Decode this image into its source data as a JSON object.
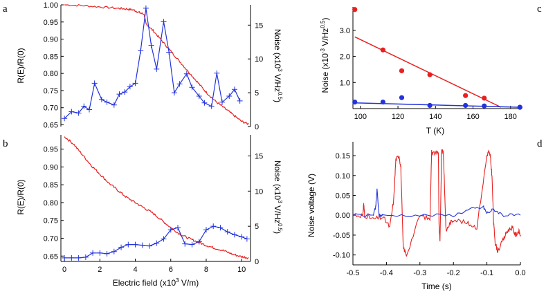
{
  "colors": {
    "red": "#e8201f",
    "blue": "#2233dd",
    "axis": "#000000"
  },
  "panel_labels": {
    "a": "a",
    "b": "b",
    "c": "c",
    "d": "d"
  },
  "axis_labels": {
    "ab_left": "R(E)/R(0)",
    "ab_right_pre": "Noise (x10",
    "ab_right_exp": "3",
    "ab_right_mid": " V/Hz",
    "ab_right_exp2": "0.5",
    "ab_right_post": ")",
    "ab_x_pre": "Electric field (x10",
    "ab_x_exp": "3",
    "ab_x_post": " V/m)",
    "c_y_pre": "Noise (x10",
    "c_y_exp": "-3",
    "c_y_mid": " V/Hz",
    "c_y_exp2": "0.5",
    "c_y_post": ")",
    "c_x": "T (K)",
    "d_y": "Noise voltage (V)",
    "d_x": "Time (s)"
  },
  "chart_data": [
    {
      "id": "a",
      "type": "line",
      "xlim": [
        -0.2,
        10.5
      ],
      "ylim_left": [
        0.645,
        1.0
      ],
      "ylim_right": [
        0,
        18
      ],
      "yticks_left": [
        "0.65",
        "0.70",
        "0.75",
        "0.80",
        "0.85",
        "0.90",
        "0.95",
        "1.00"
      ],
      "yticks_right": [
        "0",
        "5",
        "10",
        "15"
      ],
      "series": [
        {
          "name": "R(E)/R(0)",
          "axis": "left",
          "color": "red",
          "style": "noisy",
          "x": [
            0,
            1,
            2,
            3,
            3.5,
            3.9,
            4.2,
            4.5,
            4.6,
            5.0,
            5.5,
            6.0,
            6.5,
            7.0,
            7.5,
            8.0,
            8.5,
            9.0,
            9.5,
            10.0,
            10.4
          ],
          "y": [
            1.0,
            0.998,
            0.994,
            0.99,
            0.988,
            0.985,
            0.978,
            0.972,
            0.945,
            0.925,
            0.895,
            0.865,
            0.835,
            0.805,
            0.775,
            0.745,
            0.72,
            0.7,
            0.68,
            0.66,
            0.652
          ]
        },
        {
          "name": "Noise",
          "axis": "right",
          "color": "blue",
          "style": "plus",
          "x": [
            0,
            0.4,
            0.8,
            1.1,
            1.4,
            1.7,
            2.1,
            2.4,
            2.8,
            3.1,
            3.4,
            3.7,
            4.0,
            4.3,
            4.6,
            4.9,
            5.2,
            5.6,
            5.9,
            6.2,
            6.5,
            6.9,
            7.2,
            7.6,
            7.9,
            8.3,
            8.6,
            8.9,
            9.3,
            9.6,
            9.9
          ],
          "y": [
            1.2,
            2.2,
            2.0,
            3.0,
            2.5,
            6.4,
            4.0,
            3.6,
            3.2,
            4.8,
            5.1,
            5.9,
            6.4,
            11.2,
            17.5,
            12.0,
            8.5,
            15.5,
            11.0,
            5.0,
            6.3,
            7.8,
            5.8,
            4.5,
            3.5,
            3.0,
            7.9,
            3.6,
            4.5,
            5.5,
            3.8
          ]
        }
      ]
    },
    {
      "id": "b",
      "type": "line",
      "xlim": [
        -0.2,
        10.5
      ],
      "ylim_left": [
        0.635,
        0.99
      ],
      "ylim_right": [
        0,
        18
      ],
      "xticks": [
        "0",
        "2",
        "4",
        "6",
        "8",
        "10"
      ],
      "yticks_left": [
        "0.65",
        "0.70",
        "0.75",
        "0.80",
        "0.85",
        "0.90",
        "0.95"
      ],
      "yticks_right": [
        "0",
        "5",
        "10",
        "15"
      ],
      "series": [
        {
          "name": "R(E)/R(0)",
          "axis": "left",
          "color": "red",
          "style": "noisy",
          "x": [
            0,
            0.5,
            1,
            1.5,
            2,
            2.5,
            3,
            3.5,
            4,
            4.5,
            5,
            5.5,
            6,
            6.5,
            7,
            7.5,
            8,
            8.5,
            9,
            9.5,
            10,
            10.4
          ],
          "y": [
            0.985,
            0.965,
            0.935,
            0.905,
            0.88,
            0.855,
            0.835,
            0.815,
            0.8,
            0.785,
            0.77,
            0.75,
            0.73,
            0.712,
            0.7,
            0.69,
            0.68,
            0.672,
            0.665,
            0.655,
            0.648,
            0.645
          ]
        },
        {
          "name": "Noise",
          "axis": "right",
          "color": "blue",
          "style": "plus",
          "x": [
            0,
            0.4,
            0.8,
            1.2,
            1.6,
            2.0,
            2.4,
            2.8,
            3.2,
            3.6,
            4.0,
            4.4,
            4.8,
            5.2,
            5.6,
            6.0,
            6.4,
            6.8,
            7.2,
            7.6,
            8.0,
            8.4,
            8.8,
            9.2,
            9.6,
            10.0,
            10.3
          ],
          "y": [
            0.5,
            0.5,
            0.5,
            0.6,
            1.2,
            1.2,
            1.1,
            1.4,
            2.0,
            2.4,
            2.4,
            2.3,
            2.2,
            2.6,
            3.2,
            4.5,
            4.8,
            2.5,
            2.4,
            2.8,
            4.5,
            5.0,
            4.8,
            4.2,
            3.8,
            3.5,
            3.2
          ]
        }
      ]
    },
    {
      "id": "c",
      "type": "scatter",
      "xlim": [
        96,
        186
      ],
      "ylim": [
        0,
        3.9
      ],
      "xticks": [
        "100",
        "120",
        "140",
        "160",
        "180"
      ],
      "yticks": [
        "1.0",
        "2.0",
        "3.0"
      ],
      "series": [
        {
          "name": "red",
          "color": "red",
          "x": [
            97,
            112,
            122,
            137,
            156,
            166,
            185
          ],
          "y": [
            3.8,
            2.25,
            1.45,
            1.3,
            0.5,
            0.4,
            0.05
          ]
        },
        {
          "name": "blue",
          "color": "blue",
          "x": [
            97,
            112,
            122,
            137,
            156,
            166,
            185
          ],
          "y": [
            0.25,
            0.25,
            0.42,
            0.12,
            0.12,
            0.1,
            0.05
          ]
        }
      ],
      "fits": [
        {
          "color": "red",
          "x": [
            97,
            175
          ],
          "y": [
            2.75,
            0.05
          ]
        },
        {
          "color": "blue",
          "x": [
            97,
            185
          ],
          "y": [
            0.22,
            0.05
          ]
        }
      ]
    },
    {
      "id": "d",
      "type": "line",
      "xlim": [
        -0.5,
        0.0
      ],
      "ylim": [
        -0.125,
        0.185
      ],
      "xticks": [
        "-0.5",
        "-0.4",
        "-0.3",
        "-0.2",
        "-0.1",
        "0.0"
      ],
      "yticks": [
        "-0.10",
        "-0.05",
        "0.00",
        "0.05",
        "0.10",
        "0.15"
      ],
      "series": [
        {
          "name": "red trace",
          "color": "red",
          "x": [
            -0.5,
            -0.47,
            -0.468,
            -0.465,
            -0.44,
            -0.41,
            -0.39,
            -0.378,
            -0.372,
            -0.362,
            -0.357,
            -0.35,
            -0.34,
            -0.3,
            -0.27,
            -0.265,
            -0.262,
            -0.245,
            -0.243,
            -0.24,
            -0.235,
            -0.23,
            -0.225,
            -0.222,
            -0.21,
            -0.2,
            -0.16,
            -0.13,
            -0.1,
            -0.095,
            -0.09,
            -0.085,
            -0.08,
            -0.075,
            -0.068,
            -0.05,
            -0.04,
            -0.025,
            -0.015,
            -0.005,
            0.0
          ],
          "y": [
            0.0,
            0.0,
            0.03,
            0.0,
            -0.01,
            -0.005,
            -0.03,
            0.04,
            0.14,
            0.15,
            0.12,
            -0.08,
            -0.1,
            0.0,
            -0.01,
            0.16,
            0.155,
            0.16,
            -0.02,
            -0.07,
            0.16,
            0.16,
            0.03,
            -0.04,
            -0.02,
            -0.01,
            -0.02,
            -0.03,
            0.15,
            0.16,
            0.15,
            0.1,
            -0.02,
            -0.07,
            -0.09,
            -0.06,
            -0.04,
            -0.03,
            -0.05,
            -0.04,
            -0.05
          ]
        },
        {
          "name": "blue trace",
          "color": "blue",
          "x": [
            -0.5,
            -0.44,
            -0.432,
            -0.428,
            -0.422,
            -0.41,
            -0.3,
            -0.2,
            -0.15,
            -0.11,
            -0.1,
            -0.08,
            -0.05,
            0.0
          ],
          "y": [
            0.0,
            0.0,
            0.02,
            0.065,
            0.0,
            0.0,
            0.0,
            0.0,
            0.015,
            0.02,
            0.005,
            0.015,
            0.0,
            0.0
          ]
        }
      ]
    }
  ]
}
